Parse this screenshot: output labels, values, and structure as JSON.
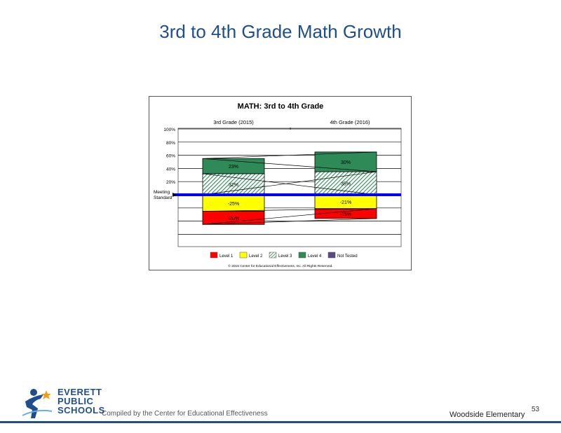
{
  "slide": {
    "title": "3rd to 4th Grade Math Growth",
    "footer_left": "Compiled by the Center for Educational Effectiveness",
    "footer_right": "Woodside Elementary",
    "page_number": "53",
    "logo_lines": [
      "EVERETT",
      "PUBLIC",
      "SCHOOLS"
    ],
    "logo_icon": "student-figure-icon"
  },
  "colors": {
    "title": "#1f4e8c",
    "level1": "#ff0000",
    "level2": "#ffff00",
    "level3": "#2e8b57",
    "level4": "#2e8b57",
    "not_tested": "#5b4a8a",
    "meeting_line": "#0000ff"
  },
  "chart_data": {
    "type": "bar",
    "title": "MATH: 3rd to 4th Grade",
    "categories": [
      "3rd Grade (2015)",
      "4th Grade (2016)"
    ],
    "y_ticks": [
      "100%",
      "80%",
      "60%",
      "40%",
      "20%"
    ],
    "ylim": [
      -40,
      100
    ],
    "meeting_label": [
      "Meeting",
      "Standard"
    ],
    "series": [
      {
        "name": "Level 1",
        "values": [
          -20,
          -15
        ],
        "labels": [
          "-20%",
          "-15%"
        ]
      },
      {
        "name": "Level 2",
        "values": [
          -25,
          -21
        ],
        "labels": [
          "-25%",
          "-21%"
        ]
      },
      {
        "name": "Level 3",
        "values": [
          32,
          35
        ],
        "labels": [
          "32%",
          "35%"
        ]
      },
      {
        "name": "Level 4",
        "values": [
          23,
          30
        ],
        "labels": [
          "23%",
          "30%"
        ]
      },
      {
        "name": "Not Tested",
        "values": [
          0,
          0
        ],
        "labels": [
          "",
          ""
        ]
      }
    ],
    "legend_position": "bottom",
    "grid": true,
    "copyright": "© 2016 Center for Educational Effectiveness, Inc. All Rights Reserved."
  }
}
